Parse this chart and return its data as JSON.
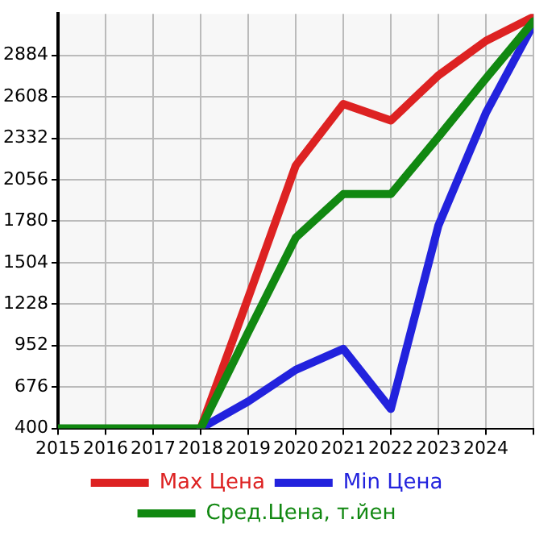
{
  "chart_data": {
    "type": "line",
    "x": [
      2015,
      2016,
      2017,
      2018,
      2019,
      2020,
      2021,
      2022,
      2023,
      2024,
      2025
    ],
    "series": [
      {
        "name": "Max Цена",
        "color": "#dd2222",
        "values": [
          null,
          null,
          null,
          400,
          1270,
          2150,
          2560,
          2450,
          2750,
          2980,
          3140
        ]
      },
      {
        "name": "Min Цена",
        "color": "#2222dd",
        "values": [
          null,
          null,
          null,
          400,
          580,
          790,
          930,
          530,
          1750,
          2500,
          3090
        ]
      },
      {
        "name": "Сред.Цена, т.йен",
        "color": "#118811",
        "values": [
          400,
          400,
          400,
          400,
          1040,
          1670,
          1960,
          1960,
          2340,
          2730,
          3110
        ]
      }
    ],
    "xlim": [
      2015,
      2025
    ],
    "xticks": [
      2015,
      2016,
      2017,
      2018,
      2019,
      2020,
      2021,
      2022,
      2023,
      2024,
      {
        "value": 2025,
        "label": null
      }
    ],
    "ylim": [
      400,
      3160
    ],
    "yticks": [
      400,
      676,
      952,
      1228,
      1504,
      1780,
      2056,
      2332,
      2608,
      2884
    ],
    "grid": true,
    "legend": "bottom",
    "marker": "none",
    "line_style": "solid"
  }
}
